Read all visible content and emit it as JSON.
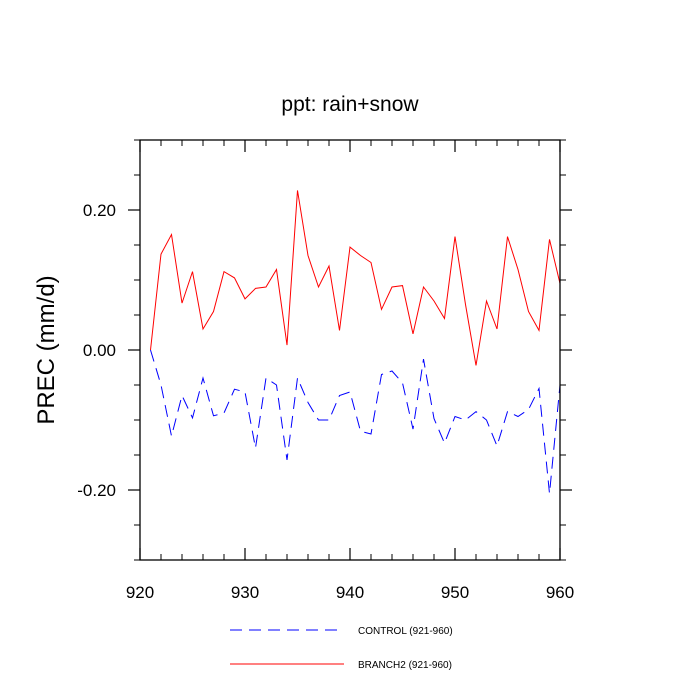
{
  "chart_data": {
    "type": "line",
    "title": "ppt: rain+snow",
    "xlabel": "",
    "ylabel": "PREC  (mm/d)",
    "xlim": [
      921,
      960
    ],
    "ylim": [
      -0.3,
      0.3
    ],
    "xticks": [
      920,
      930,
      940,
      950,
      960
    ],
    "xtick_labels": [
      "920",
      "930",
      "940",
      "950",
      "960"
    ],
    "yticks": [
      -0.2,
      0.0,
      0.2
    ],
    "ytick_labels": [
      "-0.20",
      "0.00",
      "0.20"
    ],
    "grid": false,
    "legend_position": "bottom",
    "x": [
      921,
      922,
      923,
      924,
      925,
      926,
      927,
      928,
      929,
      930,
      931,
      932,
      933,
      934,
      935,
      936,
      937,
      938,
      939,
      940,
      941,
      942,
      943,
      944,
      945,
      946,
      947,
      948,
      949,
      950,
      951,
      952,
      953,
      954,
      955,
      956,
      957,
      958,
      959,
      960
    ],
    "series": [
      {
        "name": "CONTROL (921-960)",
        "color": "#0000ff",
        "dash": "dashed",
        "values": [
          0.0,
          -0.05,
          -0.123,
          -0.065,
          -0.097,
          -0.04,
          -0.094,
          -0.09,
          -0.056,
          -0.06,
          -0.14,
          -0.04,
          -0.05,
          -0.157,
          -0.04,
          -0.075,
          -0.1,
          -0.1,
          -0.065,
          -0.06,
          -0.116,
          -0.12,
          -0.035,
          -0.03,
          -0.047,
          -0.113,
          -0.013,
          -0.098,
          -0.133,
          -0.095,
          -0.1,
          -0.088,
          -0.1,
          -0.137,
          -0.088,
          -0.095,
          -0.085,
          -0.055,
          -0.205,
          -0.05
        ]
      },
      {
        "name": "BRANCH2 (921-960)",
        "color": "#ff0000",
        "dash": "solid",
        "values": [
          0.0,
          0.137,
          0.165,
          0.067,
          0.112,
          0.03,
          0.055,
          0.112,
          0.103,
          0.073,
          0.088,
          0.09,
          0.115,
          0.007,
          0.228,
          0.135,
          0.09,
          0.12,
          0.028,
          0.147,
          0.135,
          0.125,
          0.058,
          0.09,
          0.092,
          0.023,
          0.09,
          0.07,
          0.045,
          0.162,
          0.065,
          -0.022,
          0.07,
          0.03,
          0.162,
          0.115,
          0.055,
          0.028,
          0.158,
          0.095
        ]
      }
    ]
  }
}
